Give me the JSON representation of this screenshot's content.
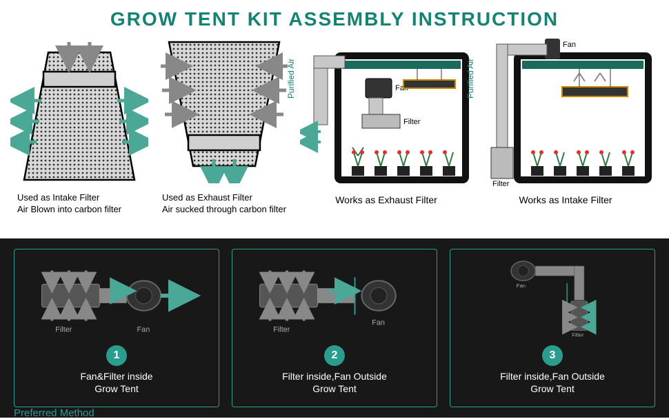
{
  "title": "GROW TENT KIT ASSEMBLY INSTRUCTION",
  "colors": {
    "teal": "#158372",
    "teal_light": "#2a9d8f",
    "arrow": "#4ca896",
    "gray": "#888888",
    "dark_bg": "#181818",
    "filter_fill": "#d0d0d0",
    "tent_frame": "#111111",
    "tent_inner": "#222222"
  },
  "top": {
    "intake": {
      "line1": "Used as Intake Filter",
      "line2": "Air Blown into carbon filter"
    },
    "exhaust": {
      "line1": "Used as Exhaust Filter",
      "line2": "Air sucked through carbon filter"
    },
    "tent_exhaust": {
      "purified": "Purified Air",
      "fan_label": "Fan",
      "filter_label": "Filter",
      "caption": "Works as Exhaust Filter"
    },
    "tent_intake": {
      "purified": "Purified Air",
      "fan_label": "Fan",
      "filter_label": "Filter",
      "caption": "Works as Intake Filter"
    }
  },
  "bottom": {
    "methods": [
      {
        "num": "1",
        "text": "Fan&Filter inside\nGrow Tent",
        "filter": "Filter",
        "fan": "Fan"
      },
      {
        "num": "2",
        "text": "Filter inside,Fan Outside\nGrow Tent",
        "filter": "Filter",
        "fan": "Fan"
      },
      {
        "num": "3",
        "text": "Filter inside,Fan Outside\nGrow Tent",
        "filter": "Filter",
        "fan": "Fan"
      }
    ],
    "preferred": "Preferred Method"
  }
}
